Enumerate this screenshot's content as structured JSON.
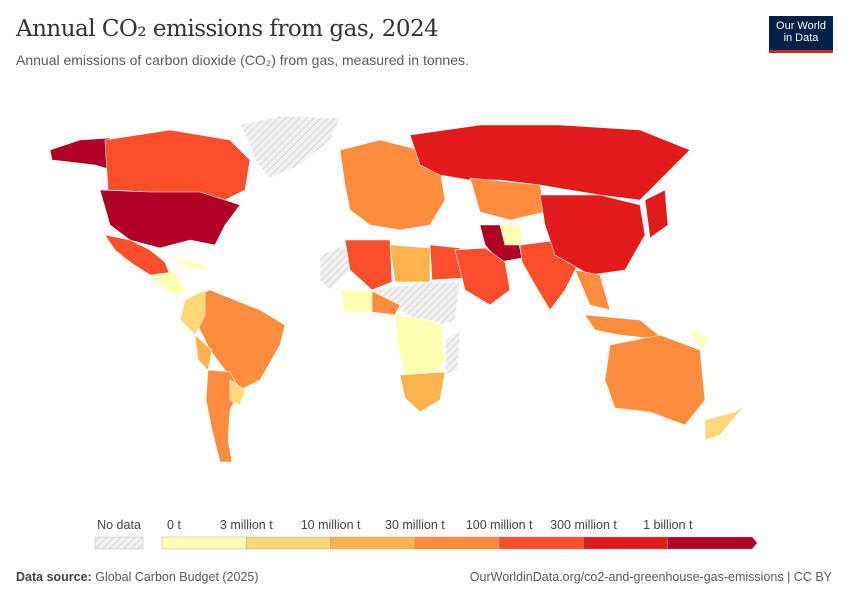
{
  "header": {
    "title": "Annual CO₂ emissions from gas, 2024",
    "subtitle": "Annual emissions of carbon dioxide (CO₂) from gas, measured in tonnes.",
    "logo_line1": "Our World",
    "logo_line2": "in Data"
  },
  "legend": {
    "no_data_label": "No data",
    "ticks": [
      "0 t",
      "3 million t",
      "10 million t",
      "30 million t",
      "100 million t",
      "300 million t",
      "1 billion t"
    ],
    "colors": [
      "#ffffb2",
      "#fed976",
      "#feb24c",
      "#fd8d3c",
      "#fc4e2a",
      "#e31a1c",
      "#b10026"
    ],
    "no_data_color": "#e6e6e6"
  },
  "footer": {
    "source_label": "Data source:",
    "source": "Global Carbon Budget (2025)",
    "url": "OurWorldinData.org/co2-and-greenhouse-gas-emissions | CC BY"
  }
}
